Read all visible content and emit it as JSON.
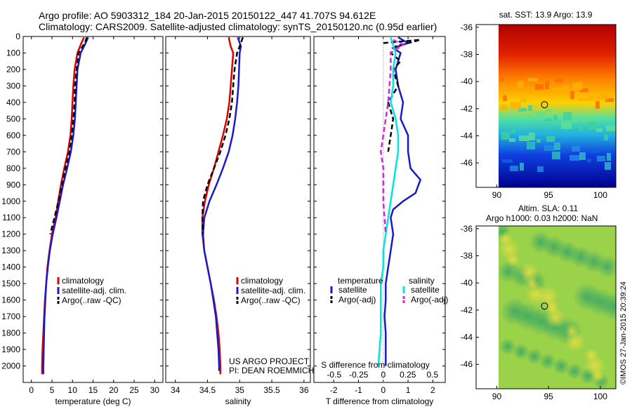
{
  "header": {
    "title_line1": "Argo profile: AO 5903312_184 20-Jan-2015 20150122_447 41.707S 94.612E",
    "title_line2": "Climatology: CARS2009. Satellite-adjusted climatology: synTS_20150120.nc (0.95d earlier)"
  },
  "stamp": "©IMOS 27-Jan-2015 20:39:24",
  "colors": {
    "red": "#e00000",
    "blue": "#1a1acc",
    "black": "#000000",
    "cyan": "#00e5e5",
    "magenta": "#e020e0"
  },
  "chart_data": [
    {
      "type": "line",
      "id": "temperature",
      "xlabel": "temperature (deg C)",
      "ylabel": "",
      "xlim": [
        -2,
        32
      ],
      "ylim": [
        2100,
        0
      ],
      "xticks": [
        0,
        5,
        10,
        15,
        20,
        25,
        30
      ],
      "yticks": [
        0,
        100,
        200,
        300,
        400,
        500,
        600,
        700,
        800,
        900,
        1000,
        1100,
        1200,
        1300,
        1400,
        1500,
        1600,
        1700,
        1800,
        1900,
        2000
      ],
      "legend": [
        "climatology",
        "satellite-adj. clim.",
        "Argo(..raw -QC)"
      ],
      "legend_placement": "lower-right",
      "series": [
        {
          "name": "climatology",
          "color": "red",
          "dash": "solid",
          "points": [
            [
              12.8,
              5
            ],
            [
              12.0,
              50
            ],
            [
              11.2,
              100
            ],
            [
              10.5,
              200
            ],
            [
              10.2,
              300
            ],
            [
              10.0,
              400
            ],
            [
              9.8,
              500
            ],
            [
              9.5,
              600
            ],
            [
              8.9,
              700
            ],
            [
              8.0,
              800
            ],
            [
              7.2,
              900
            ],
            [
              6.5,
              1000
            ],
            [
              5.9,
              1100
            ],
            [
              5.0,
              1200
            ],
            [
              4.4,
              1300
            ],
            [
              3.9,
              1400
            ],
            [
              3.6,
              1500
            ],
            [
              3.3,
              1600
            ],
            [
              3.1,
              1700
            ],
            [
              2.9,
              1800
            ],
            [
              2.7,
              1900
            ],
            [
              2.6,
              2000
            ],
            [
              2.6,
              2050
            ]
          ]
        },
        {
          "name": "satellite-adj. clim.",
          "color": "blue",
          "dash": "solid",
          "points": [
            [
              13.8,
              5
            ],
            [
              13.0,
              50
            ],
            [
              12.0,
              100
            ],
            [
              11.2,
              200
            ],
            [
              11.0,
              300
            ],
            [
              10.8,
              400
            ],
            [
              10.6,
              500
            ],
            [
              10.2,
              600
            ],
            [
              9.6,
              700
            ],
            [
              8.7,
              800
            ],
            [
              7.7,
              900
            ],
            [
              6.9,
              1000
            ],
            [
              6.1,
              1100
            ],
            [
              5.2,
              1200
            ],
            [
              4.5,
              1300
            ],
            [
              4.0,
              1400
            ],
            [
              3.6,
              1500
            ],
            [
              3.4,
              1600
            ],
            [
              3.2,
              1700
            ],
            [
              3.1,
              1800
            ],
            [
              3.0,
              1900
            ],
            [
              2.9,
              2000
            ],
            [
              2.9,
              2050
            ]
          ]
        },
        {
          "name": "Argo(..raw -QC)",
          "color": "black",
          "dash": "dash",
          "points": [
            [
              13.5,
              5
            ],
            [
              13.0,
              40
            ],
            [
              12.2,
              70
            ],
            [
              11.5,
              100
            ],
            [
              11.0,
              200
            ],
            [
              10.6,
              300
            ],
            [
              10.5,
              400
            ],
            [
              10.2,
              500
            ],
            [
              9.8,
              600
            ],
            [
              9.2,
              700
            ],
            [
              8.3,
              800
            ],
            [
              7.4,
              900
            ],
            [
              6.6,
              1000
            ],
            [
              5.6,
              1100
            ],
            [
              4.6,
              1200
            ]
          ]
        }
      ]
    },
    {
      "type": "line",
      "id": "salinity",
      "xlabel": "salinity",
      "xlim": [
        33.85,
        36.1
      ],
      "ylim": [
        2100,
        0
      ],
      "xticks": [
        34,
        34.5,
        35,
        35.5,
        36
      ],
      "legend": [
        "climatology",
        "satellite-adj. clim.",
        "Argo(..raw -QC)"
      ],
      "legend_placement": "lower-right",
      "series": [
        {
          "name": "climatology",
          "color": "red",
          "dash": "solid",
          "points": [
            [
              34.83,
              5
            ],
            [
              34.86,
              60
            ],
            [
              34.9,
              100
            ],
            [
              34.88,
              200
            ],
            [
              34.86,
              300
            ],
            [
              34.84,
              400
            ],
            [
              34.8,
              500
            ],
            [
              34.74,
              600
            ],
            [
              34.67,
              700
            ],
            [
              34.6,
              800
            ],
            [
              34.52,
              900
            ],
            [
              34.46,
              1000
            ],
            [
              34.42,
              1100
            ],
            [
              34.42,
              1200
            ],
            [
              34.45,
              1300
            ],
            [
              34.5,
              1400
            ],
            [
              34.55,
              1500
            ],
            [
              34.6,
              1600
            ],
            [
              34.64,
              1700
            ],
            [
              34.67,
              1800
            ],
            [
              34.69,
              1900
            ],
            [
              34.7,
              2000
            ],
            [
              34.7,
              2050
            ]
          ]
        },
        {
          "name": "satellite-adj. clim.",
          "color": "blue",
          "dash": "solid",
          "points": [
            [
              34.97,
              5
            ],
            [
              35.02,
              60
            ],
            [
              35.0,
              100
            ],
            [
              34.99,
              200
            ],
            [
              34.98,
              300
            ],
            [
              34.96,
              400
            ],
            [
              34.93,
              500
            ],
            [
              34.89,
              600
            ],
            [
              34.83,
              700
            ],
            [
              34.74,
              800
            ],
            [
              34.64,
              900
            ],
            [
              34.53,
              1000
            ],
            [
              34.45,
              1100
            ],
            [
              34.43,
              1200
            ],
            [
              34.45,
              1300
            ],
            [
              34.5,
              1400
            ],
            [
              34.55,
              1500
            ],
            [
              34.59,
              1600
            ],
            [
              34.63,
              1700
            ],
            [
              34.65,
              1800
            ],
            [
              34.67,
              1900
            ],
            [
              34.68,
              2000
            ],
            [
              34.68,
              2030
            ]
          ]
        },
        {
          "name": "Argo(..raw -QC)",
          "color": "black",
          "dash": "dash",
          "points": [
            [
              35.05,
              5
            ],
            [
              35.0,
              60
            ],
            [
              34.96,
              100
            ],
            [
              34.92,
              200
            ],
            [
              34.9,
              300
            ],
            [
              34.88,
              400
            ],
            [
              34.84,
              500
            ],
            [
              34.78,
              600
            ],
            [
              34.7,
              700
            ],
            [
              34.6,
              800
            ],
            [
              34.5,
              900
            ],
            [
              34.43,
              1000
            ],
            [
              34.42,
              1100
            ],
            [
              34.43,
              1200
            ]
          ]
        }
      ],
      "annotations": [
        "US ARGO PROJECT",
        "PI: DEAN ROEMMICH"
      ]
    },
    {
      "type": "line",
      "id": "difference",
      "xlabel": "T difference from climatology",
      "xlabel_top": "S difference from climatology",
      "xlim": [
        -2.8,
        2.5
      ],
      "ylim": [
        2100,
        0
      ],
      "xticks": [
        -2,
        -1,
        0,
        1,
        2
      ],
      "xticks_top": [
        -0.5,
        -0.25,
        0,
        0.25,
        0.5
      ],
      "legend_headers": [
        "temperature",
        "salinity"
      ],
      "legend": [
        "satellite",
        "Argo(-adj)",
        "satellite",
        "Argo(-adj)"
      ],
      "legend_placement": "lower-center",
      "series": [
        {
          "name": "satellite",
          "color": "blue",
          "dash": "solid",
          "points": [
            [
              0.6,
              5
            ],
            [
              1.0,
              40
            ],
            [
              0.4,
              70
            ],
            [
              0.7,
              100
            ],
            [
              0.5,
              200
            ],
            [
              0.6,
              300
            ],
            [
              0.8,
              400
            ],
            [
              0.7,
              500
            ],
            [
              1.0,
              600
            ],
            [
              1.0,
              700
            ],
            [
              1.1,
              800
            ],
            [
              1.5,
              870
            ],
            [
              1.3,
              950
            ],
            [
              0.8,
              1000
            ],
            [
              0.4,
              1050
            ],
            [
              0.3,
              1100
            ],
            [
              0.4,
              1200
            ],
            [
              0.3,
              1300
            ],
            [
              0.2,
              1400
            ],
            [
              0.1,
              1500
            ],
            [
              0.1,
              1600
            ],
            [
              0.05,
              1700
            ],
            [
              0.1,
              1800
            ],
            [
              0.1,
              1900
            ],
            [
              0.1,
              2000
            ]
          ]
        },
        {
          "name": "Argo(-adj)",
          "color": "black",
          "dash": "dash",
          "points": [
            [
              0.0,
              40
            ],
            [
              1.5,
              20
            ],
            [
              0.5,
              60
            ],
            [
              0.3,
              100
            ],
            [
              0.7,
              150
            ],
            [
              0.4,
              200
            ],
            [
              0.6,
              300
            ],
            [
              0.2,
              400
            ],
            [
              0.4,
              500
            ],
            [
              0.3,
              600
            ],
            [
              0.2,
              700
            ]
          ]
        },
        {
          "name": "satellite",
          "color": "cyan",
          "dash": "solid",
          "points": [
            [
              0.3,
              5
            ],
            [
              0.5,
              100
            ],
            [
              0.4,
              200
            ],
            [
              0.4,
              300
            ],
            [
              0.3,
              400
            ],
            [
              0.5,
              500
            ],
            [
              0.6,
              600
            ],
            [
              0.6,
              700
            ],
            [
              0.5,
              800
            ],
            [
              0.4,
              900
            ],
            [
              0.3,
              1000
            ],
            [
              0.2,
              1100
            ],
            [
              0.1,
              1200
            ],
            [
              0.0,
              1300
            ],
            [
              0.0,
              1400
            ],
            [
              -0.1,
              1500
            ],
            [
              -0.1,
              1600
            ],
            [
              -0.1,
              1700
            ],
            [
              -0.1,
              1800
            ],
            [
              -0.15,
              1900
            ],
            [
              -0.2,
              2000
            ]
          ]
        },
        {
          "name": "Argo(-adj)",
          "color": "magenta",
          "dash": "dash",
          "points": [
            [
              0.4,
              20
            ],
            [
              0.8,
              50
            ],
            [
              0.3,
              100
            ],
            [
              0.3,
              200
            ],
            [
              0.2,
              400
            ],
            [
              0.0,
              600
            ],
            [
              -0.1,
              700
            ],
            [
              0.0,
              800
            ],
            [
              0.0,
              900
            ],
            [
              0.0,
              1000
            ],
            [
              0.05,
              1100
            ],
            [
              0.1,
              1200
            ]
          ]
        }
      ],
      "reference_line": 0
    },
    {
      "type": "heatmap",
      "id": "sst_map",
      "title": "sat. SST: 13.9 Argo: 13.9",
      "xlim": [
        88,
        101.5
      ],
      "ylim": [
        -47.8,
        -35.8
      ],
      "xticks": [
        90,
        95,
        100
      ],
      "yticks": [
        -36,
        -38,
        -40,
        -42,
        -44,
        -46
      ],
      "marker": [
        94.612,
        -41.707
      ]
    },
    {
      "type": "heatmap",
      "id": "sla_map",
      "title": "Altim. SLA: 0.11",
      "subtitle": "Argo h1000: 0.03 h2000: NaN",
      "xlim": [
        88,
        101.5
      ],
      "ylim": [
        -47.8,
        -35.8
      ],
      "xticks": [
        90,
        95,
        100
      ],
      "yticks": [
        -36,
        -38,
        -40,
        -42,
        -44,
        -46
      ],
      "marker": [
        94.612,
        -41.707
      ]
    }
  ]
}
